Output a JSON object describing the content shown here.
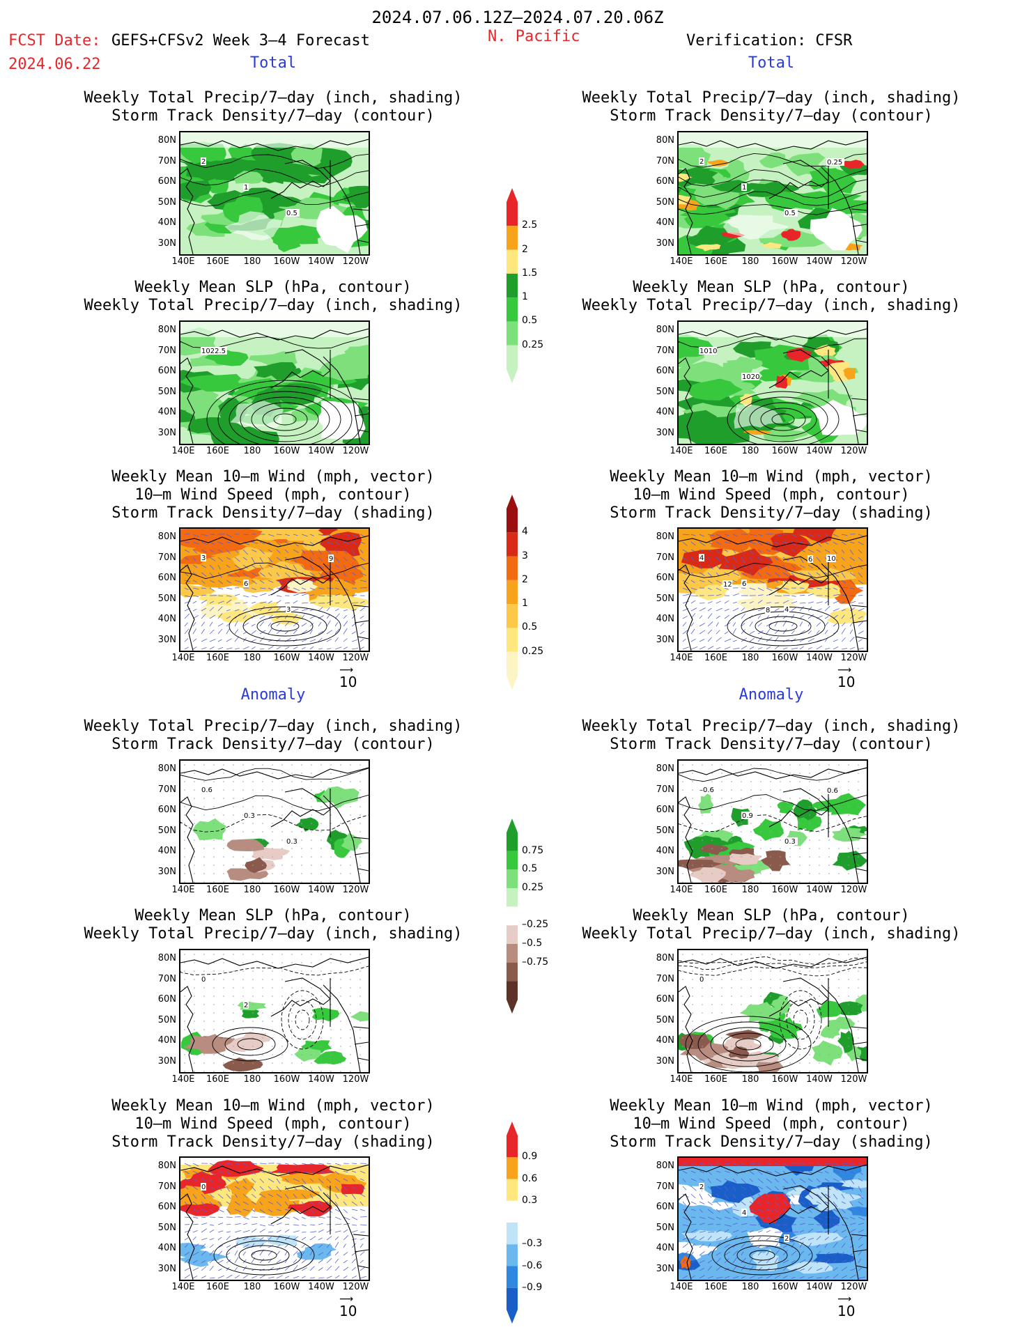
{
  "header": {
    "title": "2024.07.06.12Z–2024.07.20.06Z",
    "fcst_label": "FCST Date:",
    "model_label": "GEFS+CFSv2 Week 3–4 Forecast",
    "region": "N. Pacific",
    "verification": "Verification: CFSR",
    "fcst_date": "2024.06.22"
  },
  "sections": {
    "total_left": "Total",
    "total_right": "Total",
    "anomaly_left": "Anomaly",
    "anomaly_right": "Anomaly"
  },
  "titles": {
    "p1": [
      "Weekly Total Precip/7–day (inch, shading)",
      "Storm Track Density/7–day (contour)"
    ],
    "p2": [
      "Weekly Mean SLP (hPa, contour)",
      "Weekly Total Precip/7–day (inch, shading)"
    ],
    "p3": [
      "Weekly Mean 10–m Wind (mph, vector)",
      "10–m Wind Speed (mph, contour)",
      "Storm Track Density/7–day (shading)"
    ]
  },
  "axes": {
    "yticks": [
      "80N",
      "70N",
      "60N",
      "50N",
      "40N",
      "30N"
    ],
    "xticks": [
      "140E",
      "160E",
      "180",
      "160W",
      "140W",
      "120W"
    ]
  },
  "vector_ref": "10",
  "colorbars": {
    "precip_total": {
      "labels": [
        "2.5",
        "2",
        "1.5",
        "1",
        "0.5",
        "0.25"
      ],
      "colors": [
        "#e8262a",
        "#f7a31c",
        "#fde77e",
        "#1f9e2c",
        "#38c83e",
        "#7ee07a",
        "#c6f2c1"
      ]
    },
    "storm_total": {
      "labels": [
        "4",
        "3",
        "2",
        "1",
        "0.5",
        "0.25"
      ],
      "colors": [
        "#9a1010",
        "#d92a17",
        "#f26a12",
        "#f7a31c",
        "#fbc84a",
        "#fde77e",
        "#fdf4c4"
      ]
    },
    "precip_anom": {
      "labels": [
        "0.75",
        "0.5",
        "0.25",
        "–0.25",
        "–0.5",
        "–0.75"
      ],
      "colors": [
        "#1f9e2c",
        "#38c83e",
        "#7ee07a",
        "#c6f2c1",
        "#ffffff",
        "#e6ccc4",
        "#b88d80",
        "#8a5a4c",
        "#5c3326"
      ]
    },
    "storm_anom": {
      "labels": [
        "0.9",
        "0.6",
        "0.3",
        "–0.3",
        "–0.6",
        "–0.9"
      ],
      "colors": [
        "#e8262a",
        "#f7a31c",
        "#fde77e",
        "#ffffff",
        "#bfe4f8",
        "#6ab8ee",
        "#2f87e0",
        "#1a5fc8"
      ]
    }
  },
  "panel_annotations": {
    "L1": [
      "2",
      "1",
      "0.5"
    ],
    "R1": [
      "2",
      "1",
      "0.5",
      "0.25"
    ],
    "L2": [
      "1022.5"
    ],
    "R2": [
      "1010",
      "1020"
    ],
    "L3": [
      "3",
      "6",
      "3",
      "9"
    ],
    "R3": [
      "4",
      "6",
      "4",
      "10",
      "12",
      "8",
      "6"
    ],
    "L4": [
      "0.6",
      "0.3",
      "0.3"
    ],
    "R4": [
      "–0.6",
      "0.9",
      "0.3",
      "0.6"
    ],
    "L5": [
      "0",
      "2"
    ],
    "R5": [
      "0"
    ],
    "L6": [
      "0"
    ],
    "R6": [
      "2",
      "4",
      "2"
    ]
  }
}
